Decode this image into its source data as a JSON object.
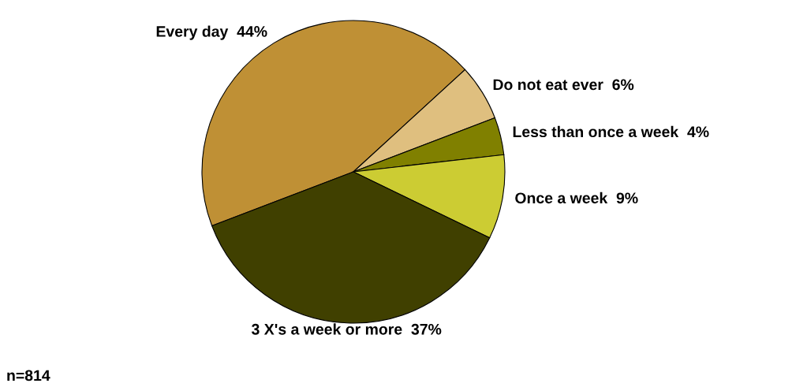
{
  "chart_data": {
    "type": "pie",
    "categories": [
      "Every day",
      "Do not eat ever",
      "Less than once a week",
      "Once a week",
      "3 X's a week or more"
    ],
    "values": [
      44,
      6,
      4,
      9,
      37
    ],
    "value_labels": [
      "44%",
      "6%",
      "4%",
      "9%",
      "37%"
    ],
    "colors": [
      "#bf9035",
      "#dfbf7f",
      "#808000",
      "#cccc33",
      "#404000"
    ],
    "annotations": [
      "n=814"
    ]
  }
}
